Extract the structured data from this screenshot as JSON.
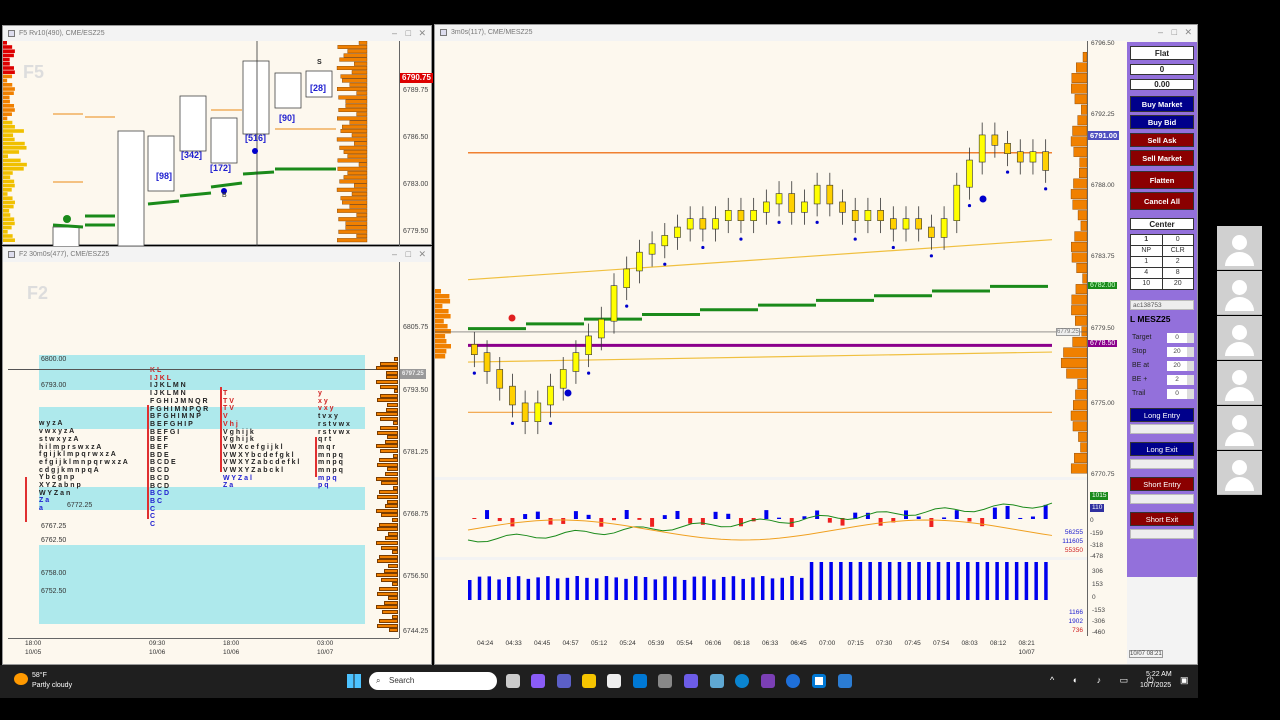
{
  "windows": {
    "f5": {
      "title": "F5 Rv10(490), CME/ESZ25",
      "watermark": "F5",
      "price_labels": [
        "6789.75",
        "6786.50",
        "6783.00",
        "6779.50"
      ],
      "last_price": "6790.75",
      "counts": [
        "[98]",
        "[342]",
        "[172]",
        "[516]",
        "[90]",
        "[28]"
      ],
      "signal_b": "B",
      "signal_s": "S"
    },
    "f2": {
      "title": "F2 30m0s(477), CME/ESZ25",
      "watermark": "F2",
      "price_labels": [
        "6805.75",
        "6793.50",
        "6781.25",
        "6768.75",
        "6756.50",
        "6744.25"
      ],
      "last_price": "6797.25",
      "zone_labels": [
        "6800.00",
        "6793.00",
        "6772.25",
        "6767.25",
        "6762.50",
        "6758.00",
        "6752.50"
      ],
      "time_labels": [
        {
          "time": "18:00",
          "date": "10/05"
        },
        {
          "time": "09:30",
          "date": "10/06"
        },
        {
          "time": "18:00",
          "date": "10/06"
        },
        {
          "time": "03:00",
          "date": "10/07"
        }
      ],
      "tpo_columns": [
        [
          "",
          "",
          "w y z A",
          "v w x y z A",
          "s t w x y z A",
          "h i l m p r s w x z A",
          "f g i j k l m p q r w x z A",
          "e f g i j k l m n p q r w x z A",
          "c d g j k m n p q A",
          "Y b c g n p",
          "X Y Z a b n p",
          "W Y Z a n",
          "Z a",
          "a"
        ],
        [
          "K L",
          "I J K L",
          "I J K L M N",
          "I J K L M N",
          "F G H I J M N Q R",
          "F G H I M N P Q R",
          "B F G H I M N P",
          "B E F G H I P",
          "B E F G I",
          "B E F",
          "B E F",
          "B D E",
          "B C D E",
          "B C D",
          "B C D",
          "B C D",
          "B C D",
          "B C",
          "C",
          "C",
          "C"
        ],
        [
          "T",
          "T V",
          "T V",
          "V",
          "V h j",
          "V g h i j k",
          "V g h i j k",
          "V W X c e f g i j k l",
          "V W X Y b c d e f g k l",
          "V W X Y Z a b c d e f k l",
          "V W X Y Z a b c k l",
          "W Y Z a l",
          "Z a"
        ],
        [
          "y",
          "x y",
          "v x y",
          "t v x y",
          "r s t v w x",
          "r s t v w x",
          "q r t",
          "m q r",
          "m n p q",
          "m n p q",
          "m n p q",
          "m p q",
          "p q"
        ]
      ]
    }
  },
  "main": {
    "title": "3m0s(117), CME/MESZ25",
    "price_labels": [
      "6796.50",
      "6792.25",
      "6788.00",
      "6783.75",
      "6779.50",
      "6775.00",
      "6770.75"
    ],
    "tags": {
      "blue": "6791.00",
      "green": "6782.00",
      "purple": "6778.50",
      "grey": "6779.25"
    },
    "approx_close": [
      6778,
      6777,
      6776,
      6775,
      6774,
      6775,
      6776,
      6777,
      6778,
      6779,
      6780,
      6782,
      6783,
      6784,
      6784.5,
      6785,
      6785.5,
      6786,
      6785.5,
      6786,
      6786.5,
      6786,
      6786.5,
      6787,
      6787.5,
      6786.5,
      6787,
      6788,
      6787,
      6786.5,
      6786,
      6786.5,
      6786,
      6785.5,
      6786,
      6785.5,
      6785,
      6786,
      6788,
      6789.5,
      6791,
      6790.5,
      6790,
      6789.5,
      6790,
      6789
    ],
    "lines": {
      "orange": 6790,
      "gold_upper": 6786,
      "gold_lower": 6777.5,
      "green": 6782,
      "purple": 6778.5
    },
    "osc1": {
      "labels": [
        "1015",
        "110",
        "0",
        "-159",
        "-318",
        "-478"
      ],
      "readouts": [
        "56255",
        "111605",
        "55350"
      ]
    },
    "osc2": {
      "labels": [
        "306",
        "153",
        "0",
        "-153",
        "-306",
        "-460"
      ],
      "readouts": [
        "1166",
        "1902",
        "736"
      ]
    },
    "time_labels": [
      "04:24",
      "04:33",
      "04:45",
      "04:57",
      "05:12",
      "05:24",
      "05:39",
      "05:54",
      "06:06",
      "06:18",
      "06:33",
      "06:45",
      "07:00",
      "07:15",
      "07:30",
      "07:45",
      "07:54",
      "08:03",
      "08:12",
      "08:21"
    ],
    "last_date": "10/07",
    "corner_date": "10/07 08:21"
  },
  "panel": {
    "position": "Flat",
    "qty": "0",
    "pnl": "0.00",
    "buy_market": "Buy Market",
    "buy_bid": "Buy Bid",
    "sell_ask": "Sell Ask",
    "sell_market": "Sell Market",
    "flatten": "Flatten",
    "cancel_all": "Cancel All",
    "center": "Center",
    "qty_input": "1",
    "qty_right": "0",
    "qty_grid": [
      "NP",
      "CLR",
      "1",
      "2",
      "4",
      "8",
      "10",
      "20"
    ],
    "account": "ac138753",
    "symbol": "L MESZ25",
    "params": [
      {
        "label": "Target",
        "value": "0"
      },
      {
        "label": "Stop",
        "value": "20"
      },
      {
        "label": "BE at",
        "value": "20"
      },
      {
        "label": "BE +",
        "value": "2"
      },
      {
        "label": "Trail",
        "value": "0"
      }
    ],
    "long_entry": "Long Entry",
    "long_exit": "Long Exit",
    "short_entry": "Short Entry",
    "short_exit": "Short Exit"
  },
  "taskbar": {
    "temp": "58°F",
    "weather": "Partly cloudy",
    "search": "Search",
    "time": "5:22 AM",
    "date": "10/7/2025"
  },
  "colors": {
    "buy": "#00008b",
    "sell": "#8b0000",
    "panel": "#9370db",
    "volume_profile": "#ff8000",
    "chart_bg": "#fdf8ee"
  }
}
